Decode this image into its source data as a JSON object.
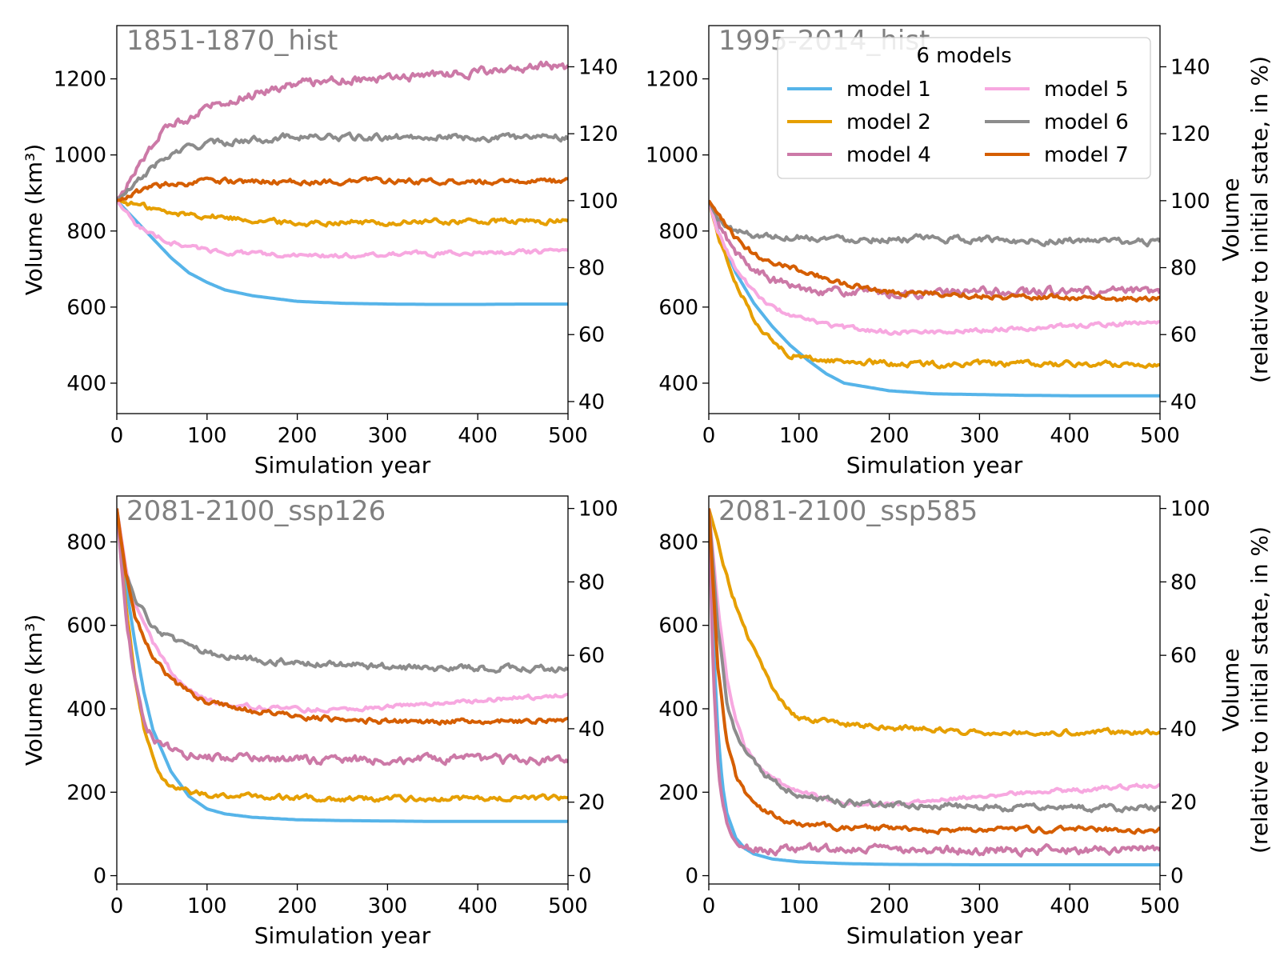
{
  "chart_data": [
    {
      "type": "line",
      "title": "1851-1870_hist",
      "xlabel": "Simulation year",
      "ylabel": "Volume (km³)",
      "ylabel_right": "",
      "xlim": [
        0,
        500
      ],
      "ylim": [
        320,
        1340
      ],
      "ylim_right": [
        36.4,
        152.3
      ],
      "xticks": [
        0,
        100,
        200,
        300,
        400,
        500
      ],
      "yticks": [
        400,
        600,
        800,
        1000,
        1200
      ],
      "yticks_right": [
        40,
        60,
        80,
        100,
        120,
        140
      ],
      "grid": false,
      "series": [
        {
          "name": "model 1",
          "x": [
            0,
            20,
            40,
            60,
            80,
            100,
            120,
            150,
            200,
            250,
            300,
            350,
            400,
            450,
            500
          ],
          "y": [
            880,
            830,
            780,
            730,
            690,
            665,
            645,
            630,
            615,
            610,
            608,
            607,
            607,
            608,
            608
          ]
        },
        {
          "name": "model 2",
          "x": [
            0,
            20,
            40,
            60,
            80,
            100,
            150,
            200,
            250,
            300,
            350,
            400,
            450,
            500
          ],
          "y": [
            880,
            870,
            860,
            845,
            845,
            840,
            830,
            820,
            825,
            820,
            825,
            825,
            825,
            825
          ]
        },
        {
          "name": "model 4",
          "x": [
            0,
            20,
            40,
            60,
            80,
            100,
            150,
            200,
            250,
            300,
            350,
            400,
            450,
            470,
            500
          ],
          "y": [
            880,
            950,
            1030,
            1080,
            1100,
            1130,
            1160,
            1190,
            1200,
            1200,
            1210,
            1220,
            1220,
            1240,
            1225
          ]
        },
        {
          "name": "model 5",
          "x": [
            0,
            20,
            40,
            60,
            80,
            100,
            150,
            200,
            250,
            300,
            350,
            400,
            450,
            500
          ],
          "y": [
            880,
            820,
            790,
            770,
            760,
            750,
            740,
            735,
            735,
            740,
            740,
            745,
            745,
            745
          ]
        },
        {
          "name": "model 6",
          "x": [
            0,
            20,
            40,
            60,
            80,
            100,
            150,
            200,
            250,
            300,
            350,
            400,
            450,
            470,
            500
          ],
          "y": [
            880,
            920,
            970,
            1000,
            1020,
            1030,
            1040,
            1050,
            1045,
            1045,
            1050,
            1045,
            1045,
            1055,
            1045
          ]
        },
        {
          "name": "model 7",
          "x": [
            0,
            20,
            40,
            60,
            80,
            100,
            150,
            200,
            250,
            300,
            350,
            400,
            450,
            500
          ],
          "y": [
            880,
            900,
            915,
            925,
            925,
            930,
            930,
            930,
            930,
            932,
            930,
            930,
            932,
            930
          ]
        }
      ]
    },
    {
      "type": "line",
      "title": "1995-2014_hist",
      "xlabel": "Simulation year",
      "ylabel": "",
      "ylabel_right": "Volume\n(relative to initial state, in %)",
      "xlim": [
        0,
        500
      ],
      "ylim": [
        320,
        1340
      ],
      "ylim_right": [
        36.4,
        152.3
      ],
      "xticks": [
        0,
        100,
        200,
        300,
        400,
        500
      ],
      "yticks": [
        400,
        600,
        800,
        1000,
        1200
      ],
      "yticks_right": [
        40,
        60,
        80,
        100,
        120,
        140
      ],
      "grid": false,
      "legend": {
        "title": "6 models",
        "position": "upper-right",
        "columns": 2
      },
      "series": [
        {
          "name": "model 1",
          "x": [
            0,
            10,
            30,
            50,
            70,
            90,
            110,
            130,
            150,
            200,
            250,
            300,
            350,
            400,
            450,
            500
          ],
          "y": [
            880,
            800,
            690,
            610,
            550,
            500,
            460,
            425,
            400,
            380,
            372,
            370,
            368,
            367,
            367,
            367
          ]
        },
        {
          "name": "model 2",
          "x": [
            0,
            10,
            30,
            50,
            70,
            90,
            110,
            130,
            150,
            200,
            250,
            300,
            350,
            400,
            450,
            500
          ],
          "y": [
            880,
            790,
            660,
            570,
            510,
            475,
            465,
            460,
            458,
            452,
            450,
            450,
            450,
            450,
            450,
            450
          ]
        },
        {
          "name": "model 4",
          "x": [
            0,
            10,
            30,
            50,
            70,
            100,
            150,
            200,
            250,
            300,
            350,
            400,
            450,
            500
          ],
          "y": [
            880,
            820,
            740,
            700,
            670,
            650,
            640,
            635,
            635,
            640,
            640,
            640,
            640,
            640
          ]
        },
        {
          "name": "model 5",
          "x": [
            0,
            10,
            30,
            50,
            70,
            100,
            150,
            200,
            250,
            300,
            350,
            400,
            450,
            500
          ],
          "y": [
            880,
            800,
            700,
            640,
            600,
            570,
            545,
            535,
            535,
            540,
            545,
            550,
            555,
            560
          ]
        },
        {
          "name": "model 6",
          "x": [
            0,
            10,
            30,
            50,
            80,
            100,
            150,
            200,
            250,
            300,
            350,
            400,
            450,
            500
          ],
          "y": [
            880,
            830,
            800,
            790,
            785,
            785,
            780,
            780,
            778,
            778,
            775,
            775,
            772,
            770
          ]
        },
        {
          "name": "model 7",
          "x": [
            0,
            10,
            30,
            50,
            70,
            100,
            150,
            200,
            250,
            300,
            350,
            400,
            450,
            500
          ],
          "y": [
            880,
            840,
            780,
            740,
            720,
            700,
            660,
            640,
            635,
            630,
            628,
            625,
            622,
            620
          ]
        }
      ]
    },
    {
      "type": "line",
      "title": "2081-2100_ssp126",
      "xlabel": "Simulation year",
      "ylabel": "Volume (km³)",
      "ylabel_right": "",
      "xlim": [
        0,
        500
      ],
      "ylim": [
        -20,
        910
      ],
      "ylim_right": [
        -2.3,
        103.4
      ],
      "xticks": [
        0,
        100,
        200,
        300,
        400,
        500
      ],
      "yticks": [
        0,
        200,
        400,
        600,
        800
      ],
      "yticks_right": [
        0,
        20,
        40,
        60,
        80,
        100
      ],
      "grid": false,
      "series": [
        {
          "name": "model 1",
          "x": [
            0,
            10,
            20,
            30,
            40,
            60,
            80,
            100,
            120,
            150,
            200,
            250,
            300,
            350,
            400,
            450,
            500
          ],
          "y": [
            880,
            700,
            560,
            440,
            350,
            250,
            190,
            160,
            148,
            140,
            134,
            132,
            131,
            130,
            130,
            130,
            130
          ]
        },
        {
          "name": "model 2",
          "x": [
            0,
            10,
            20,
            30,
            40,
            50,
            60,
            80,
            100,
            150,
            200,
            250,
            300,
            350,
            400,
            450,
            500
          ],
          "y": [
            880,
            650,
            480,
            360,
            280,
            240,
            215,
            200,
            195,
            190,
            186,
            185,
            185,
            185,
            185,
            185,
            185
          ]
        },
        {
          "name": "model 4",
          "x": [
            0,
            10,
            20,
            30,
            40,
            50,
            60,
            80,
            100,
            150,
            200,
            250,
            300,
            350,
            400,
            450,
            500
          ],
          "y": [
            880,
            620,
            470,
            380,
            330,
            310,
            300,
            290,
            285,
            280,
            278,
            278,
            278,
            278,
            278,
            278,
            278
          ]
        },
        {
          "name": "model 5",
          "x": [
            0,
            10,
            20,
            40,
            60,
            80,
            100,
            150,
            200,
            250,
            300,
            350,
            400,
            450,
            500
          ],
          "y": [
            880,
            740,
            650,
            560,
            490,
            445,
            420,
            405,
            398,
            400,
            405,
            412,
            420,
            428,
            432
          ]
        },
        {
          "name": "model 6",
          "x": [
            0,
            10,
            20,
            40,
            60,
            80,
            100,
            150,
            200,
            250,
            300,
            350,
            400,
            450,
            500
          ],
          "y": [
            880,
            720,
            660,
            600,
            565,
            545,
            535,
            520,
            510,
            505,
            500,
            498,
            497,
            496,
            495
          ]
        },
        {
          "name": "model 7",
          "x": [
            0,
            10,
            20,
            40,
            60,
            80,
            100,
            150,
            200,
            250,
            300,
            350,
            400,
            450,
            500
          ],
          "y": [
            880,
            720,
            620,
            530,
            470,
            440,
            415,
            395,
            380,
            375,
            372,
            370,
            370,
            370,
            370
          ]
        }
      ]
    },
    {
      "type": "line",
      "title": "2081-2100_ssp585",
      "xlabel": "Simulation year",
      "ylabel": "",
      "ylabel_right": "Volume\n(relative to initial state, in %)",
      "xlim": [
        0,
        500
      ],
      "ylim": [
        -20,
        910
      ],
      "ylim_right": [
        -2.3,
        103.4
      ],
      "xticks": [
        0,
        100,
        200,
        300,
        400,
        500
      ],
      "yticks": [
        0,
        200,
        400,
        600,
        800
      ],
      "yticks_right": [
        0,
        20,
        40,
        60,
        80,
        100
      ],
      "grid": false,
      "series": [
        {
          "name": "model 1",
          "x": [
            0,
            5,
            10,
            15,
            20,
            30,
            40,
            50,
            70,
            100,
            150,
            200,
            300,
            400,
            500
          ],
          "y": [
            880,
            560,
            350,
            220,
            150,
            90,
            65,
            52,
            40,
            33,
            29,
            27,
            26,
            26,
            26
          ]
        },
        {
          "name": "model 2",
          "x": [
            0,
            10,
            20,
            30,
            40,
            50,
            60,
            70,
            80,
            90,
            100,
            150,
            200,
            250,
            300,
            350,
            400,
            450,
            500
          ],
          "y": [
            880,
            800,
            720,
            650,
            590,
            540,
            495,
            455,
            420,
            395,
            375,
            365,
            355,
            350,
            345,
            345,
            345,
            345,
            345
          ]
        },
        {
          "name": "model 4",
          "x": [
            0,
            5,
            10,
            15,
            20,
            30,
            40,
            50,
            70,
            100,
            150,
            200,
            300,
            400,
            500
          ],
          "y": [
            880,
            480,
            280,
            170,
            120,
            85,
            70,
            65,
            62,
            62,
            62,
            62,
            62,
            62,
            62
          ]
        },
        {
          "name": "model 5",
          "x": [
            0,
            10,
            20,
            30,
            40,
            60,
            80,
            100,
            150,
            200,
            250,
            300,
            350,
            400,
            450,
            500
          ],
          "y": [
            880,
            650,
            470,
            370,
            310,
            250,
            220,
            200,
            175,
            170,
            180,
            190,
            198,
            205,
            212,
            218
          ]
        },
        {
          "name": "model 6",
          "x": [
            0,
            10,
            20,
            30,
            40,
            60,
            80,
            100,
            150,
            200,
            250,
            300,
            350,
            400,
            450,
            500
          ],
          "y": [
            880,
            590,
            420,
            340,
            295,
            245,
            215,
            195,
            175,
            170,
            168,
            165,
            163,
            162,
            162,
            162
          ]
        },
        {
          "name": "model 7",
          "x": [
            0,
            10,
            20,
            30,
            40,
            60,
            80,
            100,
            150,
            200,
            250,
            300,
            350,
            400,
            450,
            500
          ],
          "y": [
            880,
            500,
            320,
            240,
            200,
            160,
            135,
            125,
            115,
            112,
            110,
            110,
            110,
            110,
            110,
            110
          ]
        }
      ]
    }
  ],
  "legend_entries": [
    {
      "name": "model 1",
      "color": "#56B4E9"
    },
    {
      "name": "model 2",
      "color": "#E69F00"
    },
    {
      "name": "model 4",
      "color": "#CC79A7"
    },
    {
      "name": "model 5",
      "color": "#F7A8E0"
    },
    {
      "name": "model 6",
      "color": "#8C8C8C"
    },
    {
      "name": "model 7",
      "color": "#D55E00"
    }
  ],
  "colors": {
    "model 1": "#56B4E9",
    "model 2": "#E69F00",
    "model 4": "#CC79A7",
    "model 5": "#F7A8E0",
    "model 6": "#8C8C8C",
    "model 7": "#D55E00",
    "panel_title": "#808080"
  }
}
